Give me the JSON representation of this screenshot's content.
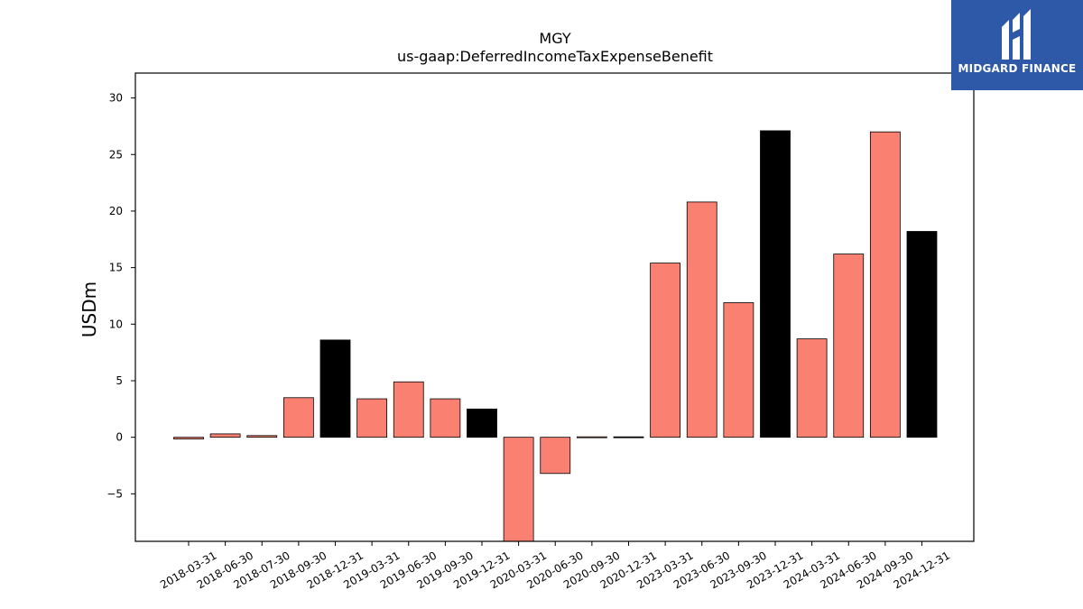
{
  "chart_data": {
    "type": "bar",
    "title": "MGY",
    "subtitle": "us-gaap:DeferredIncomeTaxExpenseBenefit",
    "xlabel": "",
    "ylabel": "USDm",
    "ylim": [
      -9.2,
      32.2
    ],
    "yticks": [
      -5,
      0,
      5,
      10,
      15,
      20,
      25,
      30
    ],
    "ytick_labels": [
      "−5",
      "0",
      "5",
      "10",
      "15",
      "20",
      "25",
      "30"
    ],
    "grid": false,
    "categories": [
      "2018-03-31",
      "2018-06-30",
      "2018-07-30",
      "2018-09-30",
      "2018-12-31",
      "2019-03-31",
      "2019-06-30",
      "2019-09-30",
      "2019-12-31",
      "2020-03-31",
      "2020-06-30",
      "2020-09-30",
      "2020-12-31",
      "2023-03-31",
      "2023-06-30",
      "2023-09-30",
      "2023-12-31",
      "2024-03-31",
      "2024-06-30",
      "2024-09-30",
      "2024-12-31"
    ],
    "values": [
      -0.15,
      0.3,
      0.15,
      3.5,
      8.6,
      3.4,
      4.9,
      3.4,
      2.5,
      -9.2,
      -3.2,
      -0.05,
      -0.05,
      15.4,
      20.8,
      11.9,
      27.1,
      8.7,
      16.2,
      27.0,
      18.2
    ],
    "bar_colors": [
      "#fa8072",
      "#fa8072",
      "#fa8072",
      "#fa8072",
      "#000000",
      "#fa8072",
      "#fa8072",
      "#fa8072",
      "#000000",
      "#fa8072",
      "#fa8072",
      "#fa8072",
      "#000000",
      "#fa8072",
      "#fa8072",
      "#fa8072",
      "#000000",
      "#fa8072",
      "#fa8072",
      "#fa8072",
      "#000000"
    ]
  },
  "logo": {
    "text": "MIDGARD FINANCE",
    "bg_color": "#2e58a8"
  }
}
